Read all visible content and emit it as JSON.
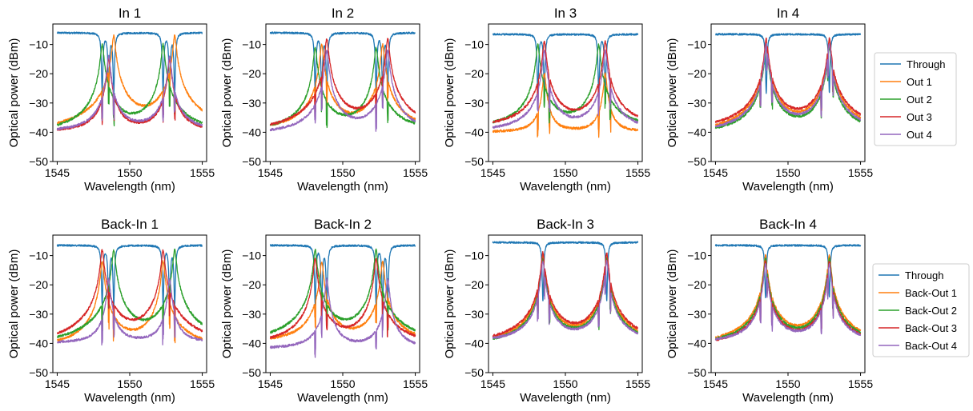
{
  "chart_data": {
    "type": "line",
    "layout": {
      "rows": 2,
      "cols": 4
    },
    "common": {
      "xlabel": "Wavelength (nm)",
      "ylabel": "Optical power (dBm)",
      "xlim": [
        1544.7,
        1555.3
      ],
      "ylim": [
        -50,
        -3
      ],
      "xticks": [
        1545,
        1550,
        1555
      ],
      "yticks": [
        -50,
        -40,
        -30,
        -20,
        -10
      ],
      "grid": false,
      "resonances": [
        1548.1,
        1548.55,
        1548.9,
        1552.3,
        1552.75,
        1553.1
      ]
    },
    "colors": {
      "through": "#1f77b4",
      "out1": "#ff7f0e",
      "out2": "#2ca02c",
      "out3": "#d62728",
      "out4": "#9467bd"
    },
    "legends": [
      {
        "row": 0,
        "placement": "right",
        "entries": [
          "Through",
          "Out 1",
          "Out 2",
          "Out 3",
          "Out 4"
        ]
      },
      {
        "row": 1,
        "placement": "right",
        "entries": [
          "Through",
          "Back-Out 1",
          "Back-Out 2",
          "Back-Out 3",
          "Back-Out 4"
        ]
      }
    ],
    "panels": [
      {
        "title": "In 1",
        "through_level": -6,
        "series": [
          {
            "name": "Through",
            "color": "#1f77b4",
            "kind": "through",
            "dips": [
              1548.1,
              1548.55,
              1548.9,
              1552.3,
              1552.75,
              1553.1
            ],
            "dip_depth": 20
          },
          {
            "name": "Out 1",
            "color": "#ff7f0e",
            "peaks": [
              1548.9,
              1553.1
            ],
            "peak": -7,
            "floor": -41
          },
          {
            "name": "Out 2",
            "color": "#2ca02c",
            "peaks": [
              1548.1,
              1552.3
            ],
            "peak": -10,
            "floor": -41
          },
          {
            "name": "Out 3",
            "color": "#d62728",
            "peaks": [
              1548.55,
              1552.75
            ],
            "peak": -15,
            "floor": -40
          },
          {
            "name": "Out 4",
            "color": "#9467bd",
            "peaks": [
              1548.55,
              1552.75
            ],
            "peak": -14,
            "floor": -40
          }
        ]
      },
      {
        "title": "In 2",
        "through_level": -6,
        "series": [
          {
            "name": "Through",
            "color": "#1f77b4",
            "kind": "through",
            "dips": [
              1548.1,
              1548.55,
              1548.9,
              1552.3,
              1552.75,
              1553.1
            ],
            "dip_depth": 20
          },
          {
            "name": "Out 1",
            "color": "#ff7f0e",
            "peaks": [
              1548.55,
              1552.75
            ],
            "peak": -10,
            "floor": -40
          },
          {
            "name": "Out 2",
            "color": "#2ca02c",
            "peaks": [
              1548.1,
              1552.3
            ],
            "peak": -11,
            "floor": -40
          },
          {
            "name": "Out 3",
            "color": "#d62728",
            "peaks": [
              1548.9,
              1553.1
            ],
            "peak": -8,
            "floor": -41
          },
          {
            "name": "Out 4",
            "color": "#9467bd",
            "peaks": [
              1548.9,
              1553.1
            ],
            "peak": -12,
            "floor": -41
          }
        ]
      },
      {
        "title": "In 3",
        "through_level": -6.5,
        "series": [
          {
            "name": "Through",
            "color": "#1f77b4",
            "kind": "through",
            "dips": [
              1548.1,
              1548.55,
              1552.3,
              1552.75
            ],
            "dip_depth": 20
          },
          {
            "name": "Out 1",
            "color": "#ff7f0e",
            "peaks": [
              1548.55,
              1552.75
            ],
            "peak": -20,
            "floor": -40
          },
          {
            "name": "Out 2",
            "color": "#2ca02c",
            "peaks": [
              1548.1,
              1552.3
            ],
            "peak": -10,
            "floor": -39
          },
          {
            "name": "Out 3",
            "color": "#d62728",
            "peaks": [
              1548.55,
              1552.75
            ],
            "peak": -9,
            "floor": -39
          },
          {
            "name": "Out 4",
            "color": "#9467bd",
            "peaks": [
              1548.55,
              1552.75
            ],
            "peak": -12,
            "floor": -40
          }
        ]
      },
      {
        "title": "In 4",
        "through_level": -6.5,
        "series": [
          {
            "name": "Through",
            "color": "#1f77b4",
            "kind": "through",
            "dips": [
              1548.5,
              1552.85
            ],
            "dip_depth": 20
          },
          {
            "name": "Out 1",
            "color": "#ff7f0e",
            "peaks": [
              1548.5,
              1552.85
            ],
            "peak": -9,
            "floor": -41
          },
          {
            "name": "Out 2",
            "color": "#2ca02c",
            "peaks": [
              1548.5,
              1552.85
            ],
            "peak": -11,
            "floor": -41
          },
          {
            "name": "Out 3",
            "color": "#d62728",
            "peaks": [
              1548.5,
              1552.85
            ],
            "peak": -8,
            "floor": -40
          },
          {
            "name": "Out 4",
            "color": "#9467bd",
            "peaks": [
              1548.5,
              1552.85
            ],
            "peak": -10,
            "floor": -41
          }
        ]
      },
      {
        "title": "Back-In 1",
        "through_level": -6.5,
        "series": [
          {
            "name": "Through",
            "color": "#1f77b4",
            "kind": "through",
            "dips": [
              1548.1,
              1548.55,
              1548.9,
              1552.3,
              1552.75,
              1553.1
            ],
            "dip_depth": 20
          },
          {
            "name": "Back-Out 1",
            "color": "#ff7f0e",
            "peaks": [
              1548.1,
              1552.3
            ],
            "peak": -12,
            "floor": -42
          },
          {
            "name": "Back-Out 2",
            "color": "#2ca02c",
            "peaks": [
              1548.9,
              1553.1
            ],
            "peak": -8,
            "floor": -42
          },
          {
            "name": "Back-Out 3",
            "color": "#d62728",
            "peaks": [
              1548.1,
              1552.3
            ],
            "peak": -8,
            "floor": -42
          },
          {
            "name": "Back-Out 4",
            "color": "#9467bd",
            "peaks": [
              1548.55,
              1552.75
            ],
            "peak": -18,
            "floor": -40
          }
        ]
      },
      {
        "title": "Back-In 2",
        "through_level": -6.5,
        "series": [
          {
            "name": "Through",
            "color": "#1f77b4",
            "kind": "through",
            "dips": [
              1548.1,
              1548.55,
              1548.9,
              1552.3,
              1552.75,
              1553.1
            ],
            "dip_depth": 20
          },
          {
            "name": "Back-Out 1",
            "color": "#ff7f0e",
            "peaks": [
              1548.55,
              1552.75
            ],
            "peak": -12,
            "floor": -40
          },
          {
            "name": "Back-Out 2",
            "color": "#2ca02c",
            "peaks": [
              1548.1,
              1552.3
            ],
            "peak": -8,
            "floor": -41
          },
          {
            "name": "Back-Out 3",
            "color": "#d62728",
            "peaks": [
              1548.1,
              1552.3
            ],
            "peak": -11,
            "floor": -41
          },
          {
            "name": "Back-Out 4",
            "color": "#9467bd",
            "peaks": [
              1548.9,
              1553.1
            ],
            "peak": -18,
            "floor": -42
          }
        ]
      },
      {
        "title": "Back-In 3",
        "through_level": -5.5,
        "series": [
          {
            "name": "Through",
            "color": "#1f77b4",
            "kind": "through",
            "dips": [
              1548.45,
              1552.85
            ],
            "dip_depth": 20
          },
          {
            "name": "Back-Out 1",
            "color": "#ff7f0e",
            "peaks": [
              1548.45,
              1552.85
            ],
            "peak": -10,
            "floor": -41
          },
          {
            "name": "Back-Out 2",
            "color": "#2ca02c",
            "peaks": [
              1548.45,
              1552.85
            ],
            "peak": -11,
            "floor": -41
          },
          {
            "name": "Back-Out 3",
            "color": "#d62728",
            "peaks": [
              1548.45,
              1552.85
            ],
            "peak": -9,
            "floor": -41
          },
          {
            "name": "Back-Out 4",
            "color": "#9467bd",
            "peaks": [
              1548.45,
              1552.85
            ],
            "peak": -12,
            "floor": -40
          }
        ]
      },
      {
        "title": "Back-In 4",
        "through_level": -6.5,
        "series": [
          {
            "name": "Through",
            "color": "#1f77b4",
            "kind": "through",
            "dips": [
              1548.45,
              1552.85
            ],
            "dip_depth": 18
          },
          {
            "name": "Back-Out 1",
            "color": "#ff7f0e",
            "peaks": [
              1548.45,
              1552.85
            ],
            "peak": -10,
            "floor": -41
          },
          {
            "name": "Back-Out 2",
            "color": "#2ca02c",
            "peaks": [
              1548.45,
              1552.85
            ],
            "peak": -11,
            "floor": -41
          },
          {
            "name": "Back-Out 3",
            "color": "#d62728",
            "peaks": [
              1548.45,
              1552.85
            ],
            "peak": -12,
            "floor": -41
          },
          {
            "name": "Back-Out 4",
            "color": "#9467bd",
            "peaks": [
              1548.45,
              1552.85
            ],
            "peak": -13,
            "floor": -40
          }
        ]
      }
    ]
  }
}
